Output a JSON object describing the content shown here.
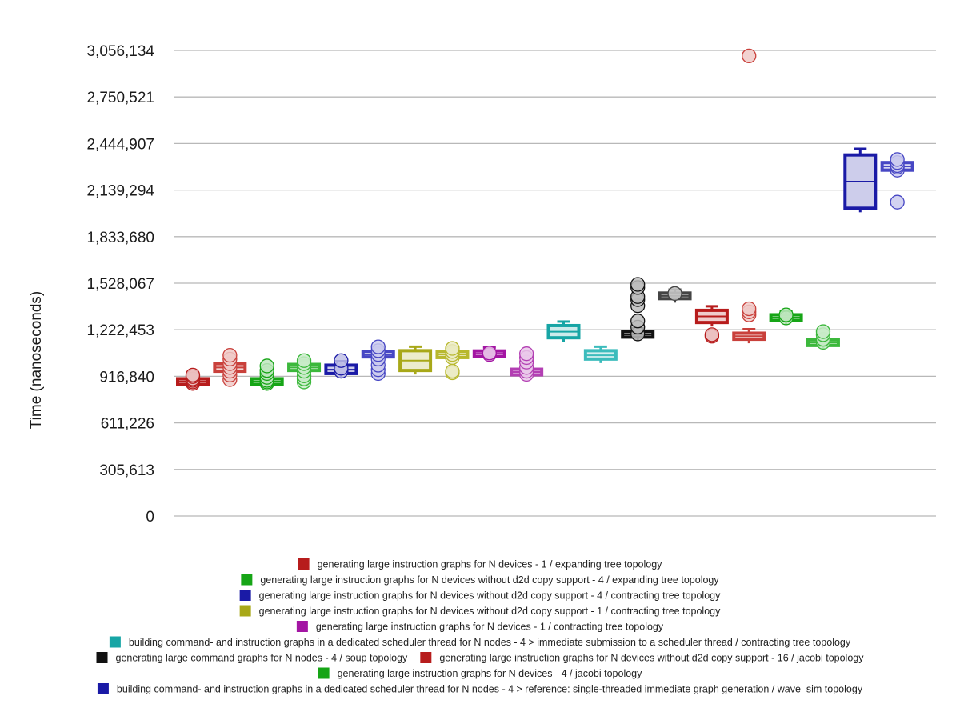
{
  "chart_data": {
    "type": "box",
    "title": "",
    "xlabel": "",
    "ylabel": "Time (nanoseconds)",
    "ylim": [
      0,
      3056134
    ],
    "y_ticks": [
      "0",
      "305,613",
      "611,226",
      "916,840",
      "1,222,453",
      "1,528,067",
      "1,833,680",
      "2,139,294",
      "2,444,907",
      "2,750,521",
      "3,056,134"
    ],
    "grid": true,
    "legend_position": "bottom",
    "series": [
      {
        "color": "#b71c1c",
        "box": [
          870000,
          895000
        ],
        "median": 883000,
        "points": [
          870000,
          880000,
          890000,
          900000,
          915000,
          925000
        ]
      },
      {
        "color": "#c9403b",
        "box": [
          950000,
          1000000
        ],
        "median": 975000,
        "points": [
          895000,
          925000,
          950000,
          975000,
          1000000,
          1030000,
          1055000
        ]
      },
      {
        "color": "#16a516",
        "box": [
          870000,
          895000
        ],
        "median": 882000,
        "points": [
          870000,
          880000,
          890000,
          910000,
          935000,
          955000,
          985000
        ]
      },
      {
        "color": "#3cb83c",
        "box": [
          955000,
          995000
        ],
        "median": 975000,
        "points": [
          880000,
          900000,
          920000,
          950000,
          975000,
          1000000,
          1020000
        ]
      },
      {
        "color": "#1a1aa6",
        "box": [
          935000,
          990000
        ],
        "median": 960000,
        "points": [
          950000,
          970000,
          1020000
        ]
      },
      {
        "color": "#4747c4",
        "box": [
          1045000,
          1080000
        ],
        "median": 1060000,
        "points": [
          935000,
          960000,
          990000,
          1030000,
          1060000,
          1085000,
          1110000
        ]
      },
      {
        "color": "#a8a818",
        "box": [
          955000,
          1085000
        ],
        "median": 1020000,
        "points": []
      },
      {
        "color": "#b8b82e",
        "box": [
          1040000,
          1080000
        ],
        "median": 1060000,
        "points": [
          940000,
          950000,
          1040000,
          1060000,
          1080000,
          1100000
        ]
      },
      {
        "color": "#a315a3",
        "box": [
          1050000,
          1080000
        ],
        "median": 1065000,
        "points": [
          1060000,
          1070000
        ]
      },
      {
        "color": "#b33fb3",
        "box": [
          930000,
          960000
        ],
        "median": 945000,
        "points": [
          930000,
          950000,
          975000,
          1010000,
          1040000,
          1065000
        ]
      },
      {
        "color": "#17a5a5",
        "box": [
          1170000,
          1250000
        ],
        "median": 1210000,
        "points": []
      },
      {
        "color": "#3cbcbc",
        "box": [
          1030000,
          1085000
        ],
        "median": 1055000,
        "points": []
      },
      {
        "color": "#111111",
        "box": [
          1180000,
          1205000
        ],
        "median": 1192000,
        "points": [
          1195000,
          1240000,
          1280000,
          1380000,
          1420000,
          1440000,
          1500000,
          1520000
        ]
      },
      {
        "color": "#444444",
        "box": [
          1430000,
          1460000
        ],
        "median": 1445000,
        "points": [
          1460000
        ]
      },
      {
        "color": "#b71c1c",
        "box": [
          1270000,
          1350000
        ],
        "median": 1310000,
        "points": [
          1180000,
          1190000
        ]
      },
      {
        "color": "#c9403b",
        "box": [
          1160000,
          1200000
        ],
        "median": 1180000,
        "points": [
          1320000,
          1340000,
          1360000,
          3020000
        ]
      },
      {
        "color": "#16a516",
        "box": [
          1285000,
          1320000
        ],
        "median": 1302000,
        "points": [
          1300000,
          1320000
        ]
      },
      {
        "color": "#3cb83c",
        "box": [
          1120000,
          1155000
        ],
        "median": 1138000,
        "points": [
          1140000,
          1160000,
          1190000,
          1210000
        ]
      },
      {
        "color": "#1a1aa6",
        "box": [
          2020000,
          2370000
        ],
        "median": 2195000,
        "points": [],
        "whisker_top": 2410000
      },
      {
        "color": "#4747c4",
        "box": [
          2270000,
          2320000
        ],
        "median": 2295000,
        "points": [
          2060000,
          2270000,
          2290000,
          2300000,
          2320000,
          2340000
        ]
      }
    ]
  },
  "legend": [
    {
      "label": "generating large instruction graphs for N devices - 1 / expanding tree topology",
      "color": "#b71c1c"
    },
    {
      "label": "generating large instruction graphs for N devices without d2d copy support - 4 / expanding tree topology",
      "color": "#16a516"
    },
    {
      "label": "generating large instruction graphs for N devices without d2d copy support - 4 / contracting tree topology",
      "color": "#1a1aa6"
    },
    {
      "label": "generating large instruction graphs for N devices without d2d copy support - 1 / contracting tree topology",
      "color": "#a8a818"
    },
    {
      "label": "generating large instruction graphs for N devices - 1 / contracting tree topology",
      "color": "#a315a3"
    },
    {
      "label": "building command- and instruction graphs in a dedicated scheduler thread for N nodes - 4 > immediate submission to a scheduler thread / contracting tree topology",
      "color": "#17a5a5"
    },
    {
      "label": "generating large command graphs for N nodes - 4 / soup topology",
      "color": "#111111"
    },
    {
      "label": "generating large instruction graphs for N devices without d2d copy support - 16 / jacobi topology",
      "color": "#b71c1c"
    },
    {
      "label": "generating large instruction graphs for N devices - 4 / jacobi topology",
      "color": "#16a516"
    },
    {
      "label": "building command- and instruction graphs in a dedicated scheduler thread for N nodes - 4 > reference: single-threaded immediate graph generation / wave_sim topology",
      "color": "#1a1aa6"
    }
  ]
}
